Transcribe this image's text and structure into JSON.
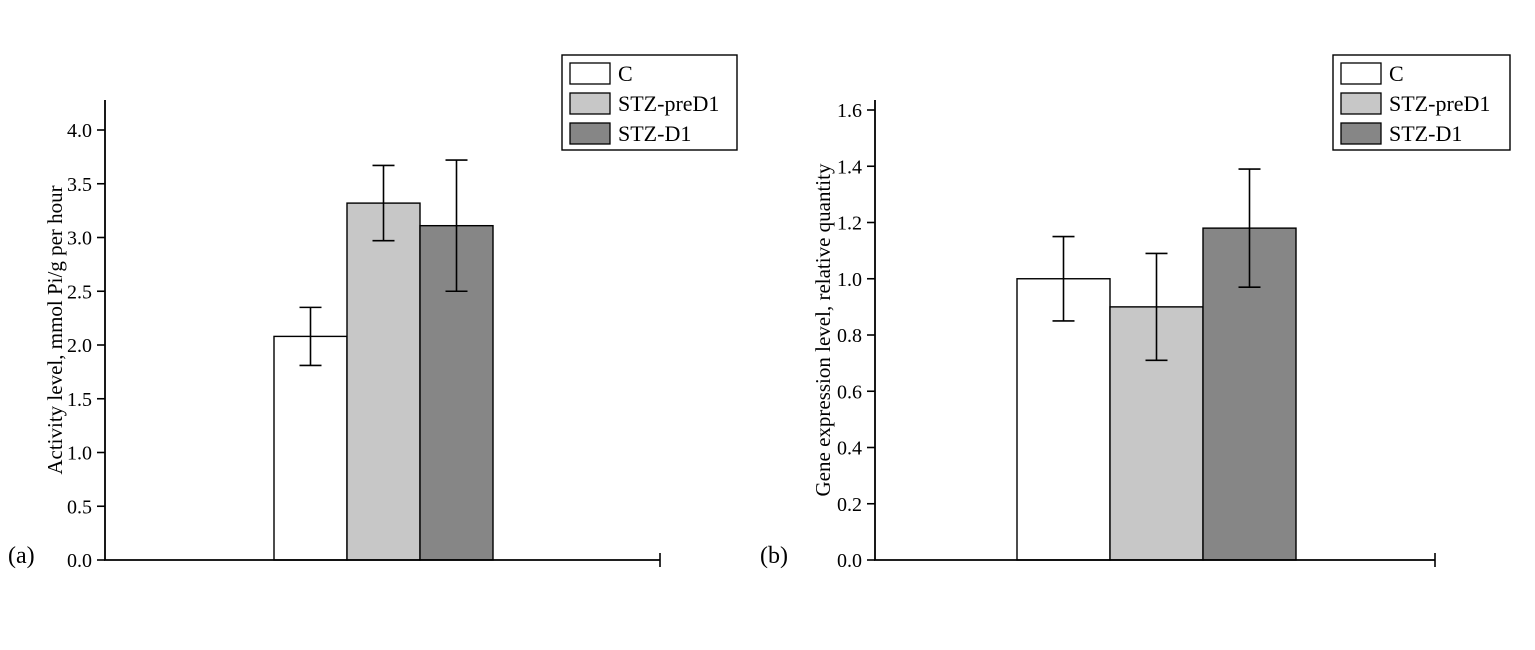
{
  "figure": {
    "background": "#ffffff",
    "panel_labels": [
      "(a)",
      "(b)"
    ]
  },
  "chart_data": [
    {
      "type": "bar",
      "panel": "(a)",
      "title": "",
      "xlabel": "",
      "ylabel": "Activity level, mmol Pi/g per hour",
      "ylim": [
        0.0,
        4.28
      ],
      "yticks": [
        0.0,
        0.5,
        1.0,
        1.5,
        2.0,
        2.5,
        3.0,
        3.5,
        4.0
      ],
      "ytick_decimals": 1,
      "grid": false,
      "categories": [
        "C",
        "STZ-preD1",
        "STZ-D1"
      ],
      "values": [
        2.08,
        3.32,
        3.11
      ],
      "errors": [
        0.27,
        0.35,
        0.61
      ],
      "bar_colors": [
        "#ffffff",
        "#c7c7c7",
        "#868686"
      ],
      "axis_color": "#000000",
      "legend": {
        "position": "top-right",
        "entries": [
          {
            "label": "C",
            "color": "#ffffff"
          },
          {
            "label": "STZ-preD1",
            "color": "#c7c7c7"
          },
          {
            "label": "STZ-D1",
            "color": "#868686"
          }
        ]
      }
    },
    {
      "type": "bar",
      "panel": "(b)",
      "title": "",
      "xlabel": "",
      "ylabel": "Gene expression level, relative quantity",
      "ylim": [
        0.0,
        1.64
      ],
      "yticks": [
        0.0,
        0.2,
        0.4,
        0.6,
        0.8,
        1.0,
        1.2,
        1.4,
        1.6
      ],
      "ytick_decimals": 1,
      "grid": false,
      "categories": [
        "C",
        "STZ-preD1",
        "STZ-D1"
      ],
      "values": [
        1.0,
        0.9,
        1.18
      ],
      "errors": [
        0.15,
        0.19,
        0.21
      ],
      "bar_colors": [
        "#ffffff",
        "#c7c7c7",
        "#868686"
      ],
      "axis_color": "#000000",
      "legend": {
        "position": "top-right",
        "entries": [
          {
            "label": "C",
            "color": "#ffffff"
          },
          {
            "label": "STZ-preD1",
            "color": "#c7c7c7"
          },
          {
            "label": "STZ-D1",
            "color": "#868686"
          }
        ]
      }
    }
  ]
}
